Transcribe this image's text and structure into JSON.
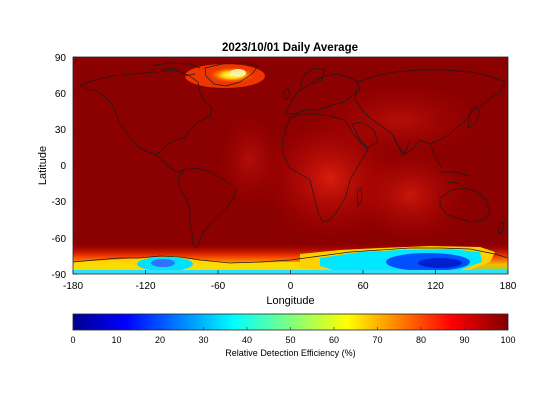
{
  "title": "2023/10/01 Daily Average",
  "axes": {
    "xlabel": "Longitude",
    "ylabel": "Latitude",
    "xlim": [
      -180,
      180
    ],
    "ylim": [
      -90,
      90
    ],
    "xticks": [
      "-180",
      "-120",
      "-60",
      "0",
      "60",
      "120",
      "180"
    ],
    "yticks": [
      "90",
      "60",
      "30",
      "0",
      "-30",
      "-60",
      "-90"
    ]
  },
  "colorbar": {
    "label": "Relative Detection Efficiency (%)",
    "range": [
      0,
      100
    ],
    "ticks": [
      "0",
      "10",
      "20",
      "30",
      "40",
      "50",
      "60",
      "70",
      "80",
      "90",
      "100"
    ],
    "colormap": "jet"
  },
  "colors": {
    "field": "#8b0000",
    "high": "#a00000",
    "mid_red": "#d01010",
    "orange": "#ff6a00",
    "yellow": "#ffee00",
    "cyan": "#00e5ff",
    "blue": "#0050ff",
    "coast": "#1a1a1a"
  }
}
